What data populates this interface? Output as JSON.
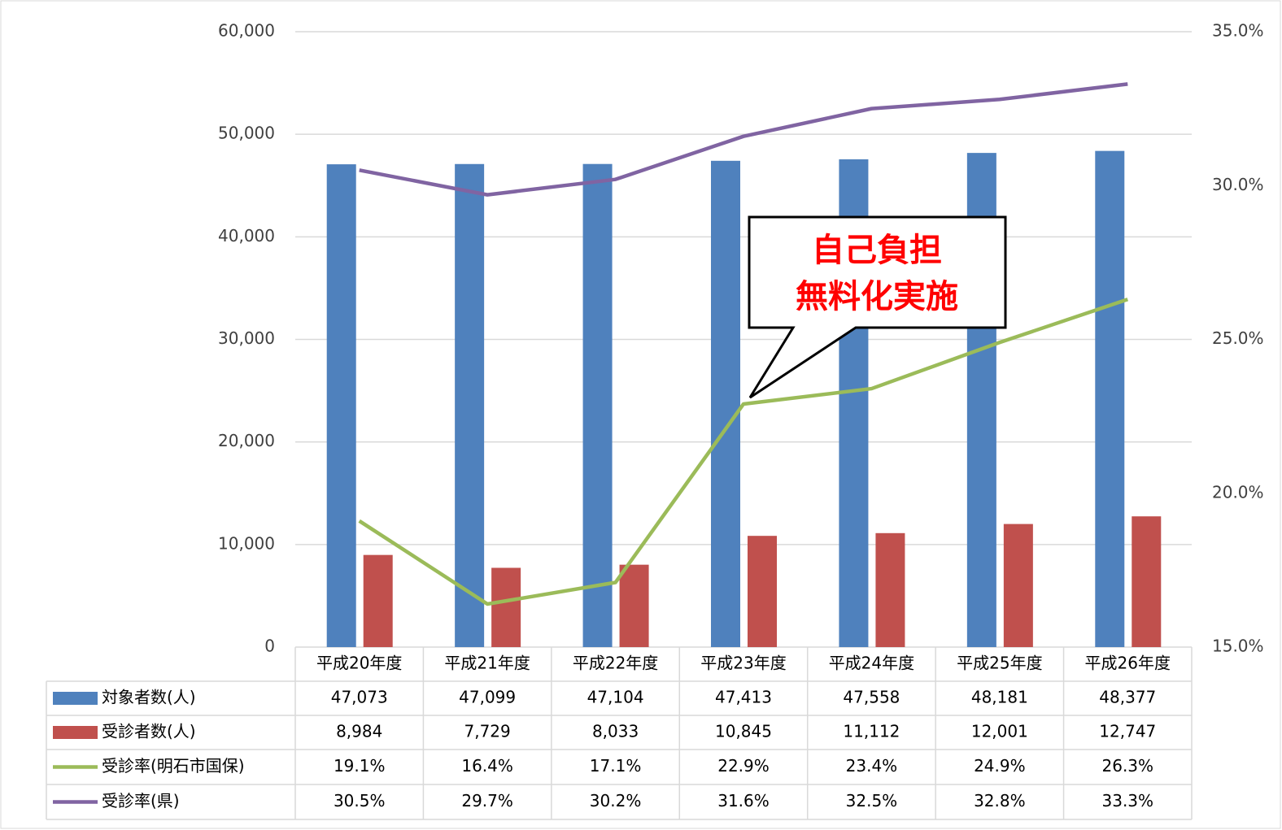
{
  "chart_data": {
    "type": "bar",
    "categories": [
      "平成20年度",
      "平成21年度",
      "平成22年度",
      "平成23年度",
      "平成24年度",
      "平成25年度",
      "平成26年度"
    ],
    "series": [
      {
        "name": "対象者数(人)",
        "type": "bar",
        "color": "#4f81bd",
        "values": [
          47073,
          47099,
          47104,
          47413,
          47558,
          48181,
          48377
        ],
        "value_labels": [
          "47,073",
          "47,099",
          "47,104",
          "47,413",
          "47,558",
          "48,181",
          "48,377"
        ]
      },
      {
        "name": "受診者数(人)",
        "type": "bar",
        "color": "#c0504d",
        "values": [
          8984,
          7729,
          8033,
          10845,
          11112,
          12001,
          12747
        ],
        "value_labels": [
          "8,984",
          "7,729",
          "8,033",
          "10,845",
          "11,112",
          "12,001",
          "12,747"
        ]
      },
      {
        "name": "受診率(明石市国保)",
        "type": "line",
        "axis": "y2",
        "color": "#9bbb59",
        "values": [
          19.1,
          16.4,
          17.1,
          22.9,
          23.4,
          24.9,
          26.3
        ],
        "value_labels": [
          "19.1%",
          "16.4%",
          "17.1%",
          "22.9%",
          "23.4%",
          "24.9%",
          "26.3%"
        ]
      },
      {
        "name": "受診率(県)",
        "type": "line",
        "axis": "y2",
        "color": "#8064a2",
        "values": [
          30.5,
          29.7,
          30.2,
          31.6,
          32.5,
          32.8,
          33.3
        ],
        "value_labels": [
          "30.5%",
          "29.7%",
          "30.2%",
          "31.6%",
          "32.5%",
          "32.8%",
          "33.3%"
        ]
      }
    ],
    "ylim": [
      0,
      60000
    ],
    "yticks": [
      0,
      {
        "value": 10000,
        "label": "10,000"
      },
      {
        "value": 20000,
        "label": "20,000"
      },
      {
        "value": 30000,
        "label": "30,000"
      },
      {
        "value": 40000,
        "label": "40,000"
      },
      {
        "value": 50000,
        "label": "50,000"
      },
      {
        "value": 60000,
        "label": "60,000"
      }
    ],
    "y2lim": [
      15,
      35
    ],
    "y2ticks": [
      {
        "value": 15,
        "label": "15.0%"
      },
      {
        "value": 20,
        "label": "20.0%"
      },
      {
        "value": 25,
        "label": "25.0%"
      },
      {
        "value": 30,
        "label": "30.0%"
      },
      {
        "value": 35,
        "label": "35.0%"
      }
    ],
    "grid": true,
    "annotation": [
      "自己負担",
      "無料化実施"
    ]
  }
}
